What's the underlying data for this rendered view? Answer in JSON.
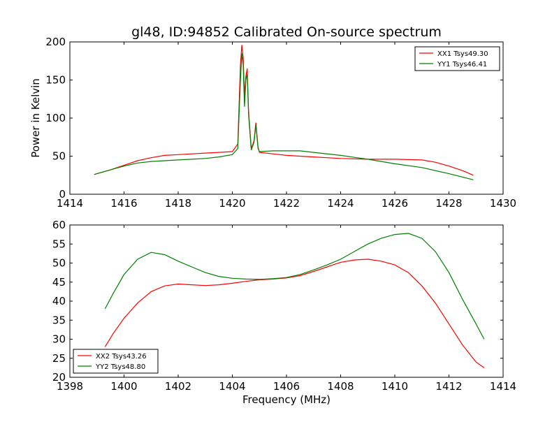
{
  "title": "gl48, ID:94852 Calibrated On-source spectrum",
  "colors": {
    "red": "#ff0000",
    "green": "#008000",
    "axes": "#000000",
    "background": "#ffffff"
  },
  "chart_data": [
    {
      "type": "line",
      "ylabel": "Power in Kelvin",
      "xlabel": "",
      "xlim": [
        1414,
        1430
      ],
      "ylim": [
        0,
        200
      ],
      "xticks": [
        "1414",
        "1416",
        "1418",
        "1420",
        "1422",
        "1424",
        "1426",
        "1428",
        "1430"
      ],
      "yticks": [
        "0",
        "50",
        "100",
        "150",
        "200"
      ],
      "grid": false,
      "legend_position": "top-right",
      "series": [
        {
          "name": "XX1 Tsys49.30",
          "color": "#ff0000",
          "x": [
            1414.9,
            1415.5,
            1416.0,
            1416.5,
            1417.0,
            1417.5,
            1418.0,
            1418.5,
            1419.0,
            1419.5,
            1420.0,
            1420.2,
            1420.3,
            1420.35,
            1420.4,
            1420.45,
            1420.5,
            1420.55,
            1420.6,
            1420.7,
            1420.8,
            1420.87,
            1420.95,
            1421.0,
            1421.5,
            1422.0,
            1423.0,
            1424.0,
            1425.0,
            1426.0,
            1427.0,
            1427.5,
            1428.0,
            1428.5,
            1428.9
          ],
          "y": [
            26,
            32,
            38,
            44,
            48,
            51,
            52,
            53,
            54,
            55,
            56,
            66,
            170,
            196,
            180,
            130,
            155,
            165,
            110,
            60,
            70,
            94,
            62,
            55,
            53,
            51,
            49,
            47,
            46,
            46,
            45,
            42,
            37,
            31,
            25
          ]
        },
        {
          "name": "YY1 Tsys46.41",
          "color": "#008000",
          "x": [
            1414.9,
            1415.5,
            1416.0,
            1416.5,
            1417.0,
            1417.5,
            1418.0,
            1418.5,
            1419.0,
            1419.5,
            1420.0,
            1420.2,
            1420.3,
            1420.35,
            1420.4,
            1420.45,
            1420.5,
            1420.55,
            1420.6,
            1420.7,
            1420.8,
            1420.87,
            1420.95,
            1421.0,
            1421.5,
            1422.0,
            1422.5,
            1423.0,
            1424.0,
            1425.0,
            1426.0,
            1427.0,
            1428.0,
            1428.9
          ],
          "y": [
            26,
            32,
            37,
            41,
            43,
            44,
            45,
            46,
            47,
            49,
            52,
            60,
            150,
            185,
            170,
            115,
            150,
            158,
            105,
            58,
            68,
            91,
            60,
            56,
            57,
            57,
            57,
            55,
            51,
            46,
            40,
            35,
            27,
            19
          ]
        }
      ]
    },
    {
      "type": "line",
      "ylabel": "",
      "xlabel": "Frequency (MHz)",
      "xlim": [
        1398,
        1414
      ],
      "ylim": [
        20,
        60
      ],
      "xticks": [
        "1398",
        "1400",
        "1402",
        "1404",
        "1406",
        "1408",
        "1410",
        "1412",
        "1414"
      ],
      "yticks": [
        "20",
        "25",
        "30",
        "35",
        "40",
        "45",
        "50",
        "55",
        "60"
      ],
      "grid": false,
      "legend_position": "bottom-left",
      "series": [
        {
          "name": "XX2 Tsys43.26",
          "color": "#ff0000",
          "x": [
            1399.3,
            1399.6,
            1400.0,
            1400.5,
            1401.0,
            1401.5,
            1402.0,
            1402.5,
            1403.0,
            1403.5,
            1404.0,
            1404.5,
            1405.0,
            1405.5,
            1406.0,
            1406.5,
            1407.0,
            1407.5,
            1408.0,
            1408.5,
            1409.0,
            1409.5,
            1410.0,
            1410.5,
            1411.0,
            1411.5,
            1412.0,
            1412.5,
            1413.0,
            1413.3
          ],
          "y": [
            28,
            31.5,
            35.5,
            39.5,
            42.5,
            44,
            44.5,
            44.3,
            44.1,
            44.3,
            44.7,
            45.2,
            45.6,
            45.8,
            46.1,
            46.7,
            47.8,
            49,
            50.2,
            50.8,
            51,
            50.5,
            49.5,
            47.5,
            44,
            39.5,
            34,
            28.5,
            24,
            22.5
          ]
        },
        {
          "name": "YY2 Tsys48.80",
          "color": "#008000",
          "x": [
            1399.3,
            1399.6,
            1400.0,
            1400.5,
            1401.0,
            1401.5,
            1402.0,
            1402.5,
            1403.0,
            1403.5,
            1404.0,
            1404.5,
            1405.0,
            1405.5,
            1406.0,
            1406.5,
            1407.0,
            1407.5,
            1408.0,
            1408.5,
            1409.0,
            1409.5,
            1410.0,
            1410.5,
            1411.0,
            1411.5,
            1412.0,
            1412.5,
            1413.0,
            1413.3
          ],
          "y": [
            38,
            42,
            47,
            51,
            52.8,
            52.2,
            50.5,
            49,
            47.5,
            46.5,
            46,
            45.8,
            45.7,
            45.9,
            46.2,
            47,
            48.2,
            49.5,
            51,
            53,
            55,
            56.5,
            57.5,
            57.8,
            56.5,
            53,
            47.5,
            40.5,
            34,
            30
          ]
        }
      ]
    }
  ]
}
